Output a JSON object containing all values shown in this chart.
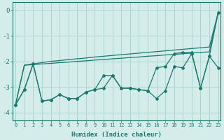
{
  "xlabel": "Humidex (Indice chaleur)",
  "x_values": [
    0,
    1,
    2,
    3,
    4,
    5,
    6,
    7,
    8,
    9,
    10,
    11,
    12,
    13,
    14,
    15,
    16,
    17,
    18,
    19,
    20,
    21,
    22,
    23
  ],
  "line_jagged1_y": [
    -3.7,
    -3.1,
    -2.1,
    -3.55,
    -3.5,
    -3.3,
    -3.45,
    -3.45,
    -3.2,
    -3.1,
    -3.05,
    -2.55,
    -3.05,
    -3.05,
    -3.1,
    -3.15,
    -3.45,
    -3.15,
    -2.2,
    -2.25,
    -1.7,
    -3.05,
    -1.8,
    -2.25
  ],
  "line_jagged2_y": [
    -3.7,
    -3.1,
    -2.1,
    -3.55,
    -3.5,
    -3.3,
    -3.45,
    -3.45,
    -3.2,
    -3.1,
    -2.55,
    -2.55,
    -3.05,
    -3.05,
    -3.1,
    -3.15,
    -2.25,
    -2.2,
    -1.7,
    -1.65,
    -1.65,
    -3.05,
    -1.8,
    -0.1
  ],
  "line_smooth1_y": [
    -3.7,
    -2.15,
    -2.1,
    -2.05,
    -2.0,
    -1.97,
    -1.93,
    -1.9,
    -1.87,
    -1.83,
    -1.8,
    -1.77,
    -1.74,
    -1.71,
    -1.68,
    -1.65,
    -1.62,
    -1.59,
    -1.56,
    -1.53,
    -1.5,
    -1.47,
    -1.44,
    -0.1
  ],
  "line_smooth2_y": [
    -3.7,
    -2.15,
    -2.13,
    -2.1,
    -2.08,
    -2.05,
    -2.03,
    -2.0,
    -1.98,
    -1.95,
    -1.93,
    -1.9,
    -1.88,
    -1.85,
    -1.83,
    -1.8,
    -1.78,
    -1.75,
    -1.73,
    -1.7,
    -1.68,
    -1.65,
    -1.63,
    -0.1
  ],
  "bg_color": "#d4ecea",
  "grid_color": "#aed5d0",
  "line_color": "#1a7a6e",
  "ylim": [
    -4.3,
    0.3
  ],
  "yticks": [
    0,
    -1,
    -2,
    -3,
    -4
  ],
  "xlim": [
    -0.3,
    23.3
  ],
  "marker": "D",
  "markersize": 2.0,
  "linewidth": 0.9
}
